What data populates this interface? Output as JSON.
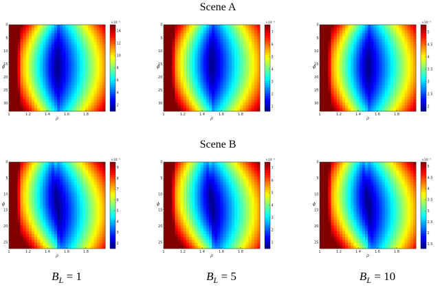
{
  "scene_titles": [
    "Scene A",
    "Scene B"
  ],
  "column_labels": [
    {
      "main": "B",
      "sub": "L",
      "eq": " = 1"
    },
    {
      "main": "B",
      "sub": "L",
      "eq": " = 5"
    },
    {
      "main": "B",
      "sub": "L",
      "eq": " = 10"
    }
  ],
  "colormap": "jet",
  "chart_data": [
    {
      "type": "heatmap",
      "scene": "Scene A",
      "B_L": 1,
      "xlabel": "ρ",
      "ylabel": "ϕ",
      "x_ticks": [
        "1",
        "1.2",
        "1.4",
        "1.6",
        "1.8"
      ],
      "y_ticks": [
        "0",
        "5",
        "10",
        "15",
        "20",
        "25",
        "30"
      ],
      "colorbar_ticks": [
        "2",
        "4",
        "6",
        "8",
        "10",
        "12",
        "14"
      ],
      "colorbar_exponent": "×10⁻³",
      "ylim": [
        0,
        33
      ],
      "xlim": [
        1,
        2
      ],
      "crange": [
        1,
        15
      ],
      "min_at": {
        "x": 1.5,
        "y": 16
      },
      "high_edge": "left"
    },
    {
      "type": "heatmap",
      "scene": "Scene A",
      "B_L": 5,
      "xlabel": "ρ",
      "ylabel": "ϕ",
      "x_ticks": [
        "1",
        "1.2",
        "1.4",
        "1.6",
        "1.8"
      ],
      "y_ticks": [
        "0",
        "5",
        "10",
        "15",
        "20",
        "25",
        "30"
      ],
      "colorbar_ticks": [
        "1",
        "2",
        "3",
        "4",
        "5",
        "6",
        "7"
      ],
      "colorbar_exponent": "×10⁻³",
      "ylim": [
        0,
        33
      ],
      "xlim": [
        1,
        2
      ],
      "crange": [
        0.6,
        7.6
      ],
      "min_at": {
        "x": 1.5,
        "y": 15
      },
      "high_edge": "left"
    },
    {
      "type": "heatmap",
      "scene": "Scene A",
      "B_L": 10,
      "xlabel": "ρ",
      "ylabel": "ϕ",
      "x_ticks": [
        "1",
        "1.2",
        "1.4",
        "1.6",
        "1.8"
      ],
      "y_ticks": [
        "0",
        "5",
        "10",
        "15",
        "20",
        "25",
        "30"
      ],
      "colorbar_ticks": [
        "2",
        "2.5",
        "3",
        "3.5",
        "4",
        "4.5",
        "5"
      ],
      "colorbar_exponent": "×10⁻³",
      "ylim": [
        0,
        33
      ],
      "xlim": [
        1,
        2
      ],
      "crange": [
        1.8,
        5.3
      ],
      "min_at": {
        "x": 1.5,
        "y": 16
      },
      "high_edge": "left"
    },
    {
      "type": "heatmap",
      "scene": "Scene B",
      "B_L": 1,
      "xlabel": "ρ",
      "ylabel": "ϕ",
      "x_ticks": [
        "1",
        "1.2",
        "1.4",
        "1.6",
        "1.8"
      ],
      "y_ticks": [
        "0",
        "5",
        "10",
        "15",
        "20",
        "25"
      ],
      "colorbar_ticks": [
        "2",
        "3",
        "4",
        "5",
        "6",
        "7",
        "8",
        "9"
      ],
      "colorbar_exponent": "×10⁻³",
      "ylim": [
        0,
        27
      ],
      "xlim": [
        1,
        2
      ],
      "crange": [
        1.5,
        9.5
      ],
      "min_at": {
        "x": 1.5,
        "y": 13
      },
      "high_edge": "left"
    },
    {
      "type": "heatmap",
      "scene": "Scene B",
      "B_L": 5,
      "xlabel": "ρ",
      "ylabel": "ϕ",
      "x_ticks": [
        "1",
        "1.2",
        "1.4",
        "1.6",
        "1.8"
      ],
      "y_ticks": [
        "0",
        "5",
        "10",
        "15",
        "20",
        "25"
      ],
      "colorbar_ticks": [
        "1",
        "2",
        "3",
        "4",
        "5",
        "6",
        "7"
      ],
      "colorbar_exponent": "×10⁻³",
      "ylim": [
        0,
        27
      ],
      "xlim": [
        1,
        2
      ],
      "crange": [
        0.5,
        7.5
      ],
      "min_at": {
        "x": 1.5,
        "y": 13
      },
      "high_edge": "left"
    },
    {
      "type": "heatmap",
      "scene": "Scene B",
      "B_L": 10,
      "xlabel": "ρ",
      "ylabel": "ϕ",
      "x_ticks": [
        "1",
        "1.2",
        "1.4",
        "1.6",
        "1.8"
      ],
      "y_ticks": [
        "0",
        "5",
        "10",
        "15",
        "20",
        "25"
      ],
      "colorbar_ticks": [
        "1.5",
        "2",
        "2.5",
        "3",
        "3.5",
        "4",
        "4.5",
        "5"
      ],
      "colorbar_exponent": "×10⁻³",
      "ylim": [
        0,
        27
      ],
      "xlim": [
        1,
        2
      ],
      "crange": [
        1.3,
        5.2
      ],
      "min_at": {
        "x": 1.5,
        "y": 13
      },
      "high_edge": "left"
    }
  ]
}
